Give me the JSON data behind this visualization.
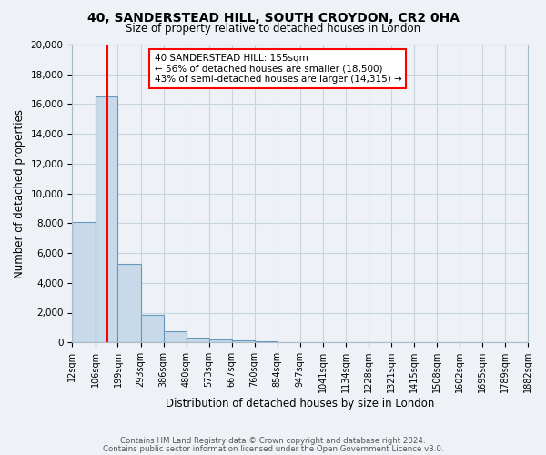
{
  "title": "40, SANDERSTEAD HILL, SOUTH CROYDON, CR2 0HA",
  "subtitle": "Size of property relative to detached houses in London",
  "xlabel": "Distribution of detached houses by size in London",
  "ylabel": "Number of detached properties",
  "bin_labels": [
    "12sqm",
    "106sqm",
    "199sqm",
    "293sqm",
    "386sqm",
    "480sqm",
    "573sqm",
    "667sqm",
    "760sqm",
    "854sqm",
    "947sqm",
    "1041sqm",
    "1134sqm",
    "1228sqm",
    "1321sqm",
    "1415sqm",
    "1508sqm",
    "1602sqm",
    "1695sqm",
    "1789sqm",
    "1882sqm"
  ],
  "bin_edges": [
    12,
    106,
    199,
    293,
    386,
    480,
    573,
    667,
    760,
    854,
    947,
    1041,
    1134,
    1228,
    1321,
    1415,
    1508,
    1602,
    1695,
    1789,
    1882
  ],
  "bar_heights": [
    8100,
    16500,
    5300,
    1850,
    750,
    300,
    175,
    125,
    75,
    0,
    0,
    0,
    0,
    0,
    0,
    0,
    0,
    0,
    0,
    0
  ],
  "bar_color": "#c8d9ea",
  "bar_edge_color": "#6699bb",
  "red_line_x": 155,
  "ylim": [
    0,
    20000
  ],
  "yticks": [
    0,
    2000,
    4000,
    6000,
    8000,
    10000,
    12000,
    14000,
    16000,
    18000,
    20000
  ],
  "annotation_title": "40 SANDERSTEAD HILL: 155sqm",
  "annotation_line1": "← 56% of detached houses are smaller (18,500)",
  "annotation_line2": "43% of semi-detached houses are larger (14,315) →",
  "footer_line1": "Contains HM Land Registry data © Crown copyright and database right 2024.",
  "footer_line2": "Contains public sector information licensed under the Open Government Licence v3.0.",
  "bg_color": "#eef2f7",
  "plot_bg_color": "#eef2f7",
  "grid_color": "#c8d4e0"
}
